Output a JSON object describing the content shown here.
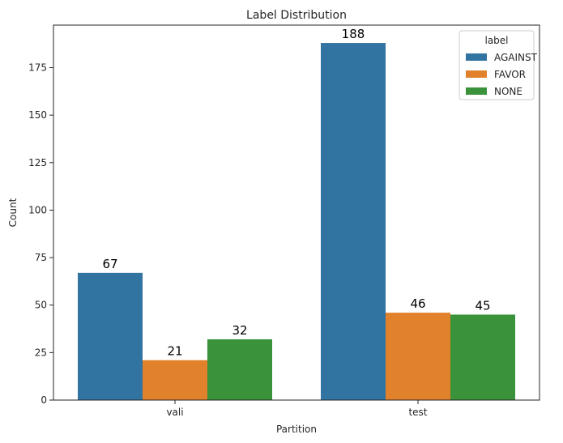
{
  "chart_data": {
    "type": "bar",
    "title": "Label Distribution",
    "xlabel": "Partition",
    "ylabel": "Count",
    "categories": [
      "vali",
      "test"
    ],
    "series": [
      {
        "name": "AGAINST",
        "values": [
          67,
          188
        ],
        "color": "#3274a1"
      },
      {
        "name": "FAVOR",
        "values": [
          21,
          46
        ],
        "color": "#e1812c"
      },
      {
        "name": "NONE",
        "values": [
          32,
          45
        ],
        "color": "#3a923a"
      }
    ],
    "ylim": [
      0,
      197.4
    ],
    "yticks": [
      0,
      25,
      50,
      75,
      100,
      125,
      150,
      175
    ],
    "legend": {
      "title": "label",
      "position": "top-right"
    },
    "grid": false
  }
}
